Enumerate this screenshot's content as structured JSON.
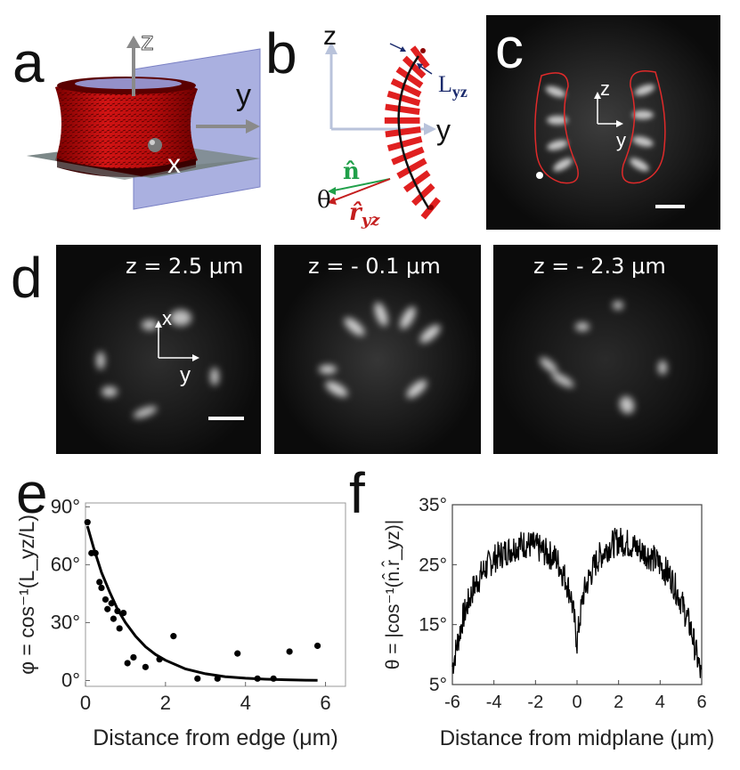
{
  "panels": {
    "a": {
      "label": "a",
      "axes": {
        "z": "z",
        "y": "y",
        "x": "x"
      }
    },
    "b": {
      "label": "b",
      "axes": {
        "z": "z",
        "y": "y"
      },
      "L": "L",
      "L_sub": "yz",
      "n_hat": "n̂",
      "theta": "θ",
      "r_hat": "r̂",
      "r_sub": "yz"
    },
    "c": {
      "label": "c",
      "axes": {
        "z": "z",
        "y": "y"
      }
    },
    "d": {
      "label": "d",
      "axes": {
        "x": "x",
        "y": "y"
      },
      "slices": [
        "z = 2.5 μm",
        "z = - 0.1 μm",
        "z = - 2.3 μm"
      ]
    },
    "e": {
      "label": "e"
    },
    "f": {
      "label": "f"
    }
  },
  "chart_data": [
    {
      "type": "scatter",
      "panel": "e",
      "xlabel": "Distance from edge (μm)",
      "ylabel": "φ = cos⁻¹(L_yz/L)",
      "xlim": [
        0,
        6.5
      ],
      "ylim": [
        -3,
        92
      ],
      "xticks": [
        "0",
        "2",
        "4",
        "6"
      ],
      "yticks": [
        "0°",
        "30°",
        "60°",
        "90°"
      ],
      "ytick_values": [
        0,
        30,
        60,
        90
      ],
      "xtick_values": [
        0,
        2,
        4,
        6
      ],
      "series": [
        {
          "kind": "points",
          "x": [
            0.05,
            0.15,
            0.25,
            0.35,
            0.4,
            0.5,
            0.55,
            0.65,
            0.7,
            0.8,
            0.85,
            0.95,
            1.05,
            1.2,
            1.5,
            1.85,
            2.2,
            2.8,
            3.3,
            3.8,
            4.3,
            4.7,
            5.1,
            5.8
          ],
          "y": [
            82,
            66,
            66,
            51,
            48,
            42,
            37,
            40,
            32,
            36,
            27,
            35,
            9,
            12,
            7,
            11,
            23,
            1,
            1,
            14,
            1,
            1,
            15,
            18
          ]
        },
        {
          "kind": "fit",
          "x": [
            0.05,
            0.2,
            0.4,
            0.6,
            0.8,
            1.0,
            1.25,
            1.5,
            1.75,
            2.0,
            2.5,
            3.0,
            3.5,
            4.0,
            4.5,
            5.0,
            5.5,
            5.8
          ],
          "y": [
            80,
            69,
            56,
            46,
            37,
            30,
            23,
            17.5,
            13.5,
            10.5,
            6,
            3.5,
            2,
            1.2,
            0.7,
            0.4,
            0.2,
            0.1
          ]
        }
      ]
    },
    {
      "type": "line",
      "panel": "f",
      "xlabel": "Distance from midplane (μm)",
      "ylabel": "θ = |cos⁻¹(n̂.r̂_yz)|",
      "xlim": [
        -6,
        6
      ],
      "ylim": [
        5,
        35
      ],
      "xticks": [
        "-6",
        "-4",
        "-2",
        "0",
        "2",
        "4",
        "6"
      ],
      "xtick_values": [
        -6,
        -4,
        -2,
        0,
        2,
        4,
        6
      ],
      "yticks": [
        "5°",
        "15°",
        "25°",
        "35°"
      ],
      "ytick_values": [
        5,
        15,
        25,
        35
      ],
      "envelope": {
        "x": [
          -6,
          -5.5,
          -5,
          -4.5,
          -4,
          -3.5,
          -3,
          -2.5,
          -2,
          -1.5,
          -1,
          -0.6,
          -0.3,
          -0.1,
          0,
          0.1,
          0.3,
          0.6,
          1,
          1.5,
          2,
          2.5,
          3,
          3.5,
          4,
          4.5,
          5,
          5.5,
          6
        ],
        "y": [
          8,
          16,
          21,
          24,
          26,
          27,
          28,
          28.5,
          28,
          27,
          26,
          23,
          20,
          15,
          12,
          15,
          20,
          23,
          26,
          28,
          29,
          28.5,
          27.5,
          26.5,
          25,
          23,
          19,
          14,
          6
        ]
      },
      "noise_amplitude": 2.5,
      "samples": 520
    }
  ]
}
